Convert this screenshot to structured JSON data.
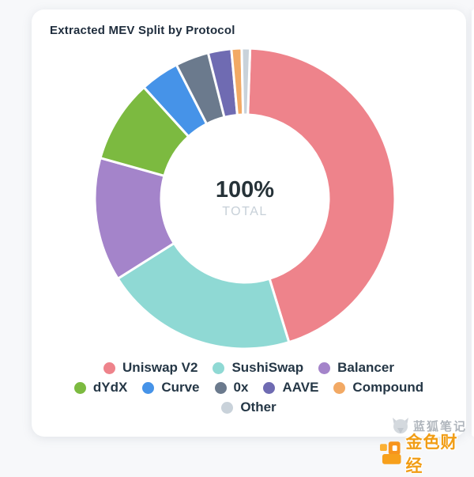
{
  "page": {
    "background_color": "#f7f8fa",
    "card_color": "#ffffff"
  },
  "header": {
    "title": "Extracted MEV Split by Protocol",
    "title_color": "#1f2d3d"
  },
  "chart_data": {
    "type": "pie",
    "variant": "donut",
    "title": "Extracted MEV Split by Protocol",
    "center_label": {
      "value": "100%",
      "sublabel": "TOTAL"
    },
    "units": "percent",
    "start_angle_deg": 2,
    "inner_radius_ratio": 0.56,
    "legend_position": "bottom",
    "series": [
      {
        "name": "Uniswap V2",
        "value": 44.7,
        "color": "#ee838b"
      },
      {
        "name": "SushiSwap",
        "value": 20.8,
        "color": "#8fd9d4"
      },
      {
        "name": "Balancer",
        "value": 13.3,
        "color": "#a484ca"
      },
      {
        "name": "dYdX",
        "value": 8.9,
        "color": "#7cba40"
      },
      {
        "name": "Curve",
        "value": 4.2,
        "color": "#4693e8"
      },
      {
        "name": "0x",
        "value": 3.6,
        "color": "#6b7a8d"
      },
      {
        "name": "AAVE",
        "value": 2.5,
        "color": "#6f6bb2"
      },
      {
        "name": "Compound",
        "value": 1.1,
        "color": "#f2a964"
      },
      {
        "name": "Other",
        "value": 0.9,
        "color": "#c9d2da"
      }
    ],
    "legend_rows": [
      [
        0,
        1,
        2
      ],
      [
        3,
        4,
        5,
        6,
        7
      ],
      [
        8
      ]
    ]
  },
  "watermarks": {
    "bluefox": {
      "text": "蓝狐笔记",
      "color": "#a3aab2"
    },
    "jinse": {
      "text": "金色财经",
      "color": "#f19d15"
    }
  }
}
